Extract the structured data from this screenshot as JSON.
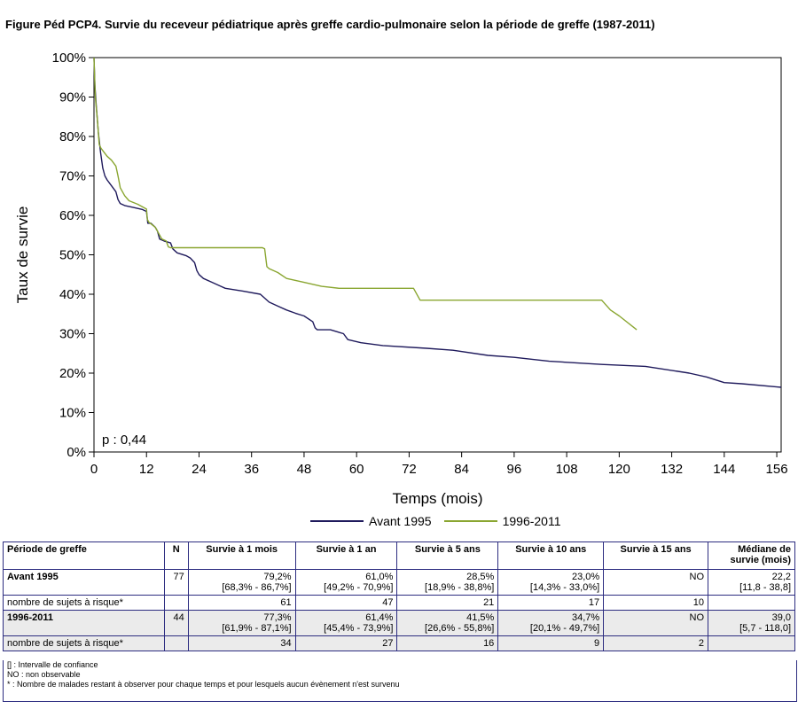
{
  "title": "Figure Péd PCP4. Survie du receveur pédiatrique après greffe cardio-pulmonaire selon la période de greffe (1987-2011)",
  "chart_data": {
    "type": "line",
    "xlabel": "Temps (mois)",
    "ylabel": "Taux de survie",
    "xlim": [
      0,
      157
    ],
    "ylim": [
      0,
      100
    ],
    "x_ticks": [
      0,
      12,
      24,
      36,
      48,
      60,
      72,
      84,
      96,
      108,
      120,
      132,
      144,
      156
    ],
    "y_ticks": [
      0,
      10,
      20,
      30,
      40,
      50,
      60,
      70,
      80,
      90,
      100
    ],
    "y_tick_labels": [
      "0%",
      "10%",
      "20%",
      "30%",
      "40%",
      "50%",
      "60%",
      "70%",
      "80%",
      "90%",
      "100%"
    ],
    "annotation": "p : 0,44",
    "legend_position": "bottom",
    "series": [
      {
        "name": "Avant 1995",
        "color": "#1f1a5c",
        "points": [
          [
            0,
            100
          ],
          [
            0.2,
            93
          ],
          [
            0.5,
            88
          ],
          [
            0.8,
            84
          ],
          [
            1,
            81
          ],
          [
            1.5,
            76
          ],
          [
            2,
            72
          ],
          [
            2.5,
            70
          ],
          [
            3,
            69
          ],
          [
            4,
            67.5
          ],
          [
            5,
            66
          ],
          [
            5.5,
            64
          ],
          [
            6,
            63
          ],
          [
            7,
            62.5
          ],
          [
            9,
            62
          ],
          [
            11,
            61.5
          ],
          [
            12,
            61
          ],
          [
            12.3,
            58
          ],
          [
            13,
            58
          ],
          [
            14,
            57
          ],
          [
            14.5,
            56
          ],
          [
            15,
            54
          ],
          [
            16,
            53.5
          ],
          [
            17.5,
            53
          ],
          [
            18,
            51.5
          ],
          [
            19,
            50.5
          ],
          [
            21,
            49.8
          ],
          [
            22,
            49.2
          ],
          [
            23,
            48
          ],
          [
            23.5,
            46
          ],
          [
            24,
            45
          ],
          [
            25,
            44
          ],
          [
            27,
            43
          ],
          [
            29,
            42
          ],
          [
            30,
            41.5
          ],
          [
            34,
            40.8
          ],
          [
            38,
            40
          ],
          [
            39,
            39
          ],
          [
            40,
            38
          ],
          [
            42,
            37
          ],
          [
            44,
            36
          ],
          [
            46,
            35.2
          ],
          [
            48,
            34.5
          ],
          [
            50,
            33
          ],
          [
            50.5,
            31.5
          ],
          [
            51,
            31
          ],
          [
            54,
            31
          ],
          [
            57,
            30
          ],
          [
            58,
            28.5
          ],
          [
            61,
            27.7
          ],
          [
            66,
            27
          ],
          [
            76,
            26.3
          ],
          [
            82,
            25.8
          ],
          [
            90,
            24.5
          ],
          [
            96,
            24
          ],
          [
            104,
            23
          ],
          [
            116,
            22.2
          ],
          [
            126,
            21.7
          ],
          [
            136,
            20
          ],
          [
            140,
            19
          ],
          [
            144,
            17.6
          ],
          [
            148,
            17.3
          ],
          [
            156,
            16.5
          ],
          [
            157,
            16.4
          ]
        ]
      },
      {
        "name": "1996-2011",
        "color": "#8aa631",
        "points": [
          [
            0,
            100
          ],
          [
            0.3,
            90
          ],
          [
            0.8,
            84
          ],
          [
            1.2,
            78
          ],
          [
            1.6,
            77
          ],
          [
            3,
            75
          ],
          [
            4,
            74
          ],
          [
            5,
            72.5
          ],
          [
            5.5,
            70
          ],
          [
            6,
            67
          ],
          [
            7,
            65
          ],
          [
            8,
            63.7
          ],
          [
            10,
            62.8
          ],
          [
            12,
            61.6
          ],
          [
            12.2,
            59
          ],
          [
            12.5,
            58.3
          ],
          [
            14,
            57
          ],
          [
            15,
            55
          ],
          [
            15.5,
            54
          ],
          [
            16.5,
            53.5
          ],
          [
            17,
            52
          ],
          [
            17.5,
            51.8
          ],
          [
            19,
            51.8
          ],
          [
            38.5,
            51.8
          ],
          [
            39,
            51.5
          ],
          [
            39.5,
            47
          ],
          [
            40,
            46.5
          ],
          [
            42,
            45.5
          ],
          [
            44,
            44
          ],
          [
            48,
            43
          ],
          [
            52,
            42
          ],
          [
            56,
            41.5
          ],
          [
            73,
            41.5
          ],
          [
            74.5,
            38.5
          ],
          [
            116,
            38.5
          ],
          [
            118,
            36
          ],
          [
            120,
            34.5
          ],
          [
            124,
            31
          ]
        ]
      }
    ]
  },
  "table": {
    "headers": [
      "Période de greffe",
      "N",
      "Survie à 1 mois",
      "Survie à 1 an",
      "Survie à 5 ans",
      "Survie à 10 ans",
      "Survie à 15 ans",
      "Médiane de survie (mois)"
    ],
    "groups": [
      {
        "name": "Avant 1995",
        "n": "77",
        "estimates": [
          "79,2%",
          "61,0%",
          "28,5%",
          "23,0%",
          "NO",
          "22,2"
        ],
        "ci": [
          "[68,3% - 86,7%]",
          "[49,2% - 70,9%]",
          "[18,9% - 38,8%]",
          "[14,3% - 33,0%]",
          "",
          "[11,8 - 38,8]"
        ],
        "risk_label": "nombre de sujets à risque*",
        "risk": [
          "61",
          "47",
          "21",
          "17",
          "10",
          ""
        ]
      },
      {
        "name": "1996-2011",
        "n": "44",
        "estimates": [
          "77,3%",
          "61,4%",
          "41,5%",
          "34,7%",
          "NO",
          "39,0"
        ],
        "ci": [
          "[61,9% - 87,1%]",
          "[45,4% - 73,9%]",
          "[26,6% - 55,8%]",
          "[20,1% - 49,7%]",
          "",
          "[5,7 - 118,0]"
        ],
        "risk_label": "nombre de sujets à risque*",
        "risk": [
          "34",
          "27",
          "16",
          "9",
          "2",
          ""
        ]
      }
    ],
    "footnotes": [
      "[] : Intervalle de confiance",
      "NO : non observable",
      "* : Nombre de malades restant à observer pour chaque temps et pour lesquels aucun évènement n'est survenu"
    ]
  }
}
